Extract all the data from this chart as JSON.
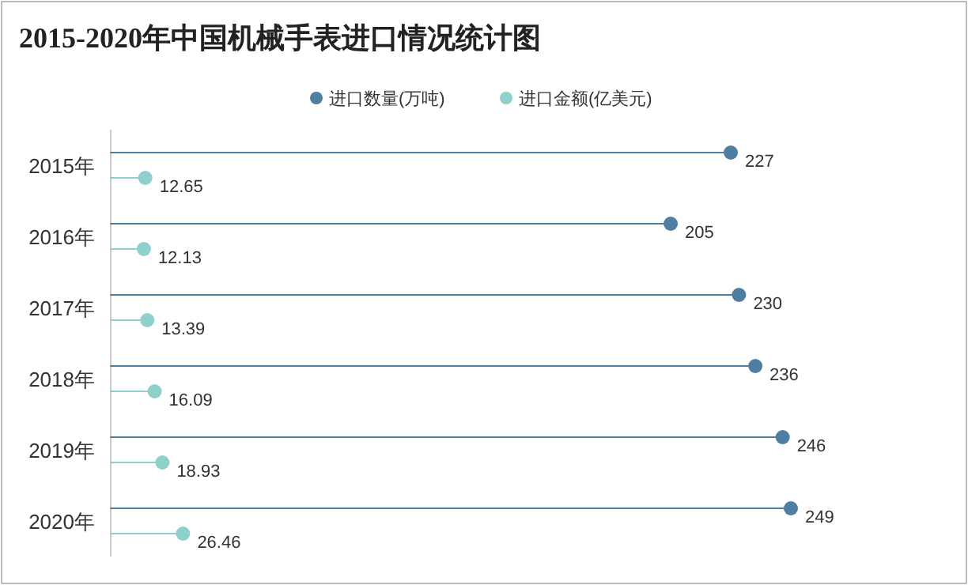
{
  "chart_data": {
    "type": "lollipop",
    "orientation": "horizontal",
    "title": "2015-2020年中国机械手表进口情况统计图",
    "categories": [
      "2015年",
      "2016年",
      "2017年",
      "2018年",
      "2019年",
      "2020年"
    ],
    "series": [
      {
        "name": "进口数量(万吨)",
        "color": "#4f7fa0",
        "values": [
          227,
          205,
          230,
          236,
          246,
          249
        ]
      },
      {
        "name": "进口金额(亿美元)",
        "color": "#8fd0cc",
        "values": [
          12.65,
          12.13,
          13.39,
          16.09,
          18.93,
          26.46
        ]
      }
    ],
    "data_labels": true,
    "legend": "top"
  }
}
